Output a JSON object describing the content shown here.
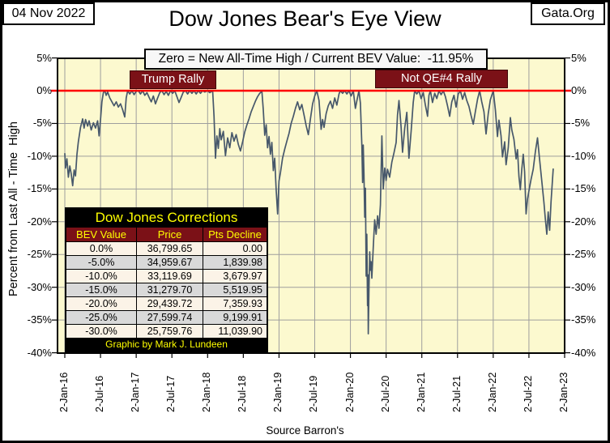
{
  "colors": {
    "plot_bg": "#FCF9CF",
    "series_line": "#47586B",
    "zero_line": "#FF0000",
    "maroon": "#7B1117",
    "yellow": "#FFFF00",
    "gridline": "#9E9E9E",
    "row_cream": "#FBF3E7",
    "row_gray": "#D9D9D9"
  },
  "header": {
    "date_box": "04 Nov 2022",
    "site_box": "Gata.Org",
    "title": "Dow Jones Bear's Eye View",
    "subtitle": "Zero = New All-Time High / Current BEV Value:  -11.95%"
  },
  "annotations": {
    "trump_rally": "Trump Rally",
    "not_qe4_rally": "Not QE#4 Rally"
  },
  "axes": {
    "y_title": "Percent from Last All - Time  High",
    "x_source": "Source Barron's",
    "y_tick_labels": [
      "5%",
      "0%",
      "-5%",
      "-10%",
      "-15%",
      "-20%",
      "-25%",
      "-30%",
      "-35%",
      "-40%"
    ],
    "x_tick_labels": [
      "2-Jan-16",
      "2-Jul-16",
      "2-Jan-17",
      "2-Jul-17",
      "2-Jan-18",
      "2-Jul-18",
      "2-Jan-19",
      "2-Jul-19",
      "2-Jan-20",
      "2-Jul-20",
      "2-Jan-21",
      "2-Jul-21",
      "2-Jan-22",
      "2-Jul-22",
      "2-Jan-23"
    ]
  },
  "corrections_table": {
    "title": "Dow Jones Corrections",
    "headers": [
      "BEV Value",
      "Price",
      "Pts Decline"
    ],
    "rows": [
      [
        "0.0%",
        "36,799.65",
        "0.00"
      ],
      [
        "-5.0%",
        "34,959.67",
        "1,839.98"
      ],
      [
        "-10.0%",
        "33,119.69",
        "3,679.97"
      ],
      [
        "-15.0%",
        "31,279.70",
        "5,519.95"
      ],
      [
        "-20.0%",
        "29,439.72",
        "7,359.93"
      ],
      [
        "-25.0%",
        "27,599.74",
        "9,199.91"
      ],
      [
        "-30.0%",
        "25,759.76",
        "11,039.90"
      ]
    ],
    "footer": "Graphic by Mark J. Lundeen"
  },
  "chart_data": {
    "type": "line",
    "title": "Dow Jones Bear's Eye View",
    "xlabel": "Source Barron's",
    "ylabel": "Percent from Last All - Time High",
    "xlim": [
      2016.0,
      2023.0
    ],
    "ylim": [
      -40,
      5
    ],
    "y_tick_values": [
      5,
      0,
      -5,
      -10,
      -15,
      -20,
      -25,
      -30,
      -35,
      -40
    ],
    "zero_line_value": 0,
    "grid": true,
    "current_bev_value": -11.95,
    "series": [
      {
        "name": "Dow Jones BEV (percent from last all-time high)",
        "points": [
          [
            2016.0,
            -9.6
          ],
          [
            2016.01,
            -11.8
          ],
          [
            2016.03,
            -10.4
          ],
          [
            2016.05,
            -13.2
          ],
          [
            2016.07,
            -11.5
          ],
          [
            2016.09,
            -12.7
          ],
          [
            2016.11,
            -14.5
          ],
          [
            2016.13,
            -12.1
          ],
          [
            2016.15,
            -13.0
          ],
          [
            2016.17,
            -9.7
          ],
          [
            2016.19,
            -7.8
          ],
          [
            2016.22,
            -5.6
          ],
          [
            2016.25,
            -4.3
          ],
          [
            2016.27,
            -5.7
          ],
          [
            2016.29,
            -4.4
          ],
          [
            2016.32,
            -5.4
          ],
          [
            2016.34,
            -4.6
          ],
          [
            2016.37,
            -6.0
          ],
          [
            2016.4,
            -4.9
          ],
          [
            2016.43,
            -5.7
          ],
          [
            2016.46,
            -4.6
          ],
          [
            2016.48,
            -6.9
          ],
          [
            2016.5,
            -4.4
          ],
          [
            2016.52,
            -1.7
          ],
          [
            2016.54,
            -0.3
          ],
          [
            2016.56,
            0
          ],
          [
            2016.58,
            -0.7
          ],
          [
            2016.6,
            -0.2
          ],
          [
            2016.63,
            -1.1
          ],
          [
            2016.66,
            -1.7
          ],
          [
            2016.69,
            -2.3
          ],
          [
            2016.72,
            -1.7
          ],
          [
            2016.75,
            -2.5
          ],
          [
            2016.78,
            -2.0
          ],
          [
            2016.81,
            -2.9
          ],
          [
            2016.84,
            -4.0
          ],
          [
            2016.86,
            -1.1
          ],
          [
            2016.88,
            0
          ],
          [
            2016.91,
            -0.5
          ],
          [
            2016.94,
            0
          ],
          [
            2016.97,
            -0.6
          ],
          [
            2017.0,
            -0.1
          ],
          [
            2017.03,
            0
          ],
          [
            2017.06,
            -0.5
          ],
          [
            2017.09,
            0
          ],
          [
            2017.12,
            -0.7
          ],
          [
            2017.15,
            -0.3
          ],
          [
            2017.18,
            -1.0
          ],
          [
            2017.21,
            -1.7
          ],
          [
            2017.24,
            -0.8
          ],
          [
            2017.27,
            -2.0
          ],
          [
            2017.3,
            -1.1
          ],
          [
            2017.33,
            -0.3
          ],
          [
            2017.36,
            0
          ],
          [
            2017.39,
            -0.6
          ],
          [
            2017.42,
            -0.1
          ],
          [
            2017.45,
            -0.7
          ],
          [
            2017.48,
            0
          ],
          [
            2017.51,
            -0.4
          ],
          [
            2017.54,
            0
          ],
          [
            2017.57,
            -0.9
          ],
          [
            2017.6,
            -1.8
          ],
          [
            2017.63,
            -1.0
          ],
          [
            2017.66,
            -0.2
          ],
          [
            2017.69,
            0
          ],
          [
            2017.72,
            -0.5
          ],
          [
            2017.75,
            0
          ],
          [
            2017.78,
            -0.4
          ],
          [
            2017.81,
            0
          ],
          [
            2017.84,
            -0.5
          ],
          [
            2017.87,
            0
          ],
          [
            2017.9,
            -0.4
          ],
          [
            2017.93,
            0
          ],
          [
            2017.96,
            -0.2
          ],
          [
            2018.0,
            0
          ],
          [
            2018.03,
            -0.3
          ],
          [
            2018.07,
            0
          ],
          [
            2018.09,
            -3.9
          ],
          [
            2018.11,
            -10.3
          ],
          [
            2018.13,
            -6.9
          ],
          [
            2018.15,
            -8.8
          ],
          [
            2018.17,
            -5.8
          ],
          [
            2018.19,
            -7.5
          ],
          [
            2018.22,
            -6.2
          ],
          [
            2018.25,
            -9.9
          ],
          [
            2018.28,
            -7.2
          ],
          [
            2018.31,
            -8.7
          ],
          [
            2018.34,
            -6.4
          ],
          [
            2018.37,
            -7.7
          ],
          [
            2018.4,
            -6.7
          ],
          [
            2018.43,
            -8.2
          ],
          [
            2018.46,
            -9.2
          ],
          [
            2018.49,
            -7.8
          ],
          [
            2018.52,
            -6.3
          ],
          [
            2018.55,
            -5.2
          ],
          [
            2018.58,
            -4.3
          ],
          [
            2018.61,
            -3.2
          ],
          [
            2018.64,
            -2.4
          ],
          [
            2018.67,
            -1.6
          ],
          [
            2018.7,
            -0.9
          ],
          [
            2018.73,
            -0.4
          ],
          [
            2018.76,
            -0.1
          ],
          [
            2018.78,
            -2.9
          ],
          [
            2018.8,
            -6.8
          ],
          [
            2018.82,
            -5.2
          ],
          [
            2018.84,
            -8.7
          ],
          [
            2018.86,
            -7.0
          ],
          [
            2018.88,
            -9.7
          ],
          [
            2018.9,
            -7.9
          ],
          [
            2018.92,
            -12.2
          ],
          [
            2018.94,
            -10.3
          ],
          [
            2018.96,
            -15.1
          ],
          [
            2018.98,
            -18.8
          ],
          [
            2019.0,
            -13.8
          ],
          [
            2019.02,
            -12.5
          ],
          [
            2019.05,
            -10.3
          ],
          [
            2019.08,
            -8.9
          ],
          [
            2019.11,
            -7.7
          ],
          [
            2019.14,
            -6.5
          ],
          [
            2019.17,
            -5.0
          ],
          [
            2019.2,
            -3.9
          ],
          [
            2019.23,
            -2.7
          ],
          [
            2019.26,
            -1.7
          ],
          [
            2019.29,
            -2.9
          ],
          [
            2019.32,
            -2.1
          ],
          [
            2019.35,
            -3.7
          ],
          [
            2019.38,
            -5.3
          ],
          [
            2019.41,
            -6.7
          ],
          [
            2019.44,
            -4.3
          ],
          [
            2019.47,
            -2.0
          ],
          [
            2019.5,
            -0.8
          ],
          [
            2019.53,
            0
          ],
          [
            2019.56,
            -1.5
          ],
          [
            2019.59,
            -5.9
          ],
          [
            2019.61,
            -4.4
          ],
          [
            2019.63,
            -5.6
          ],
          [
            2019.66,
            -3.5
          ],
          [
            2019.69,
            -2.3
          ],
          [
            2019.72,
            -1.6
          ],
          [
            2019.75,
            -2.7
          ],
          [
            2019.78,
            -1.1
          ],
          [
            2019.81,
            -2.2
          ],
          [
            2019.84,
            -0.5
          ],
          [
            2019.86,
            0
          ],
          [
            2019.89,
            -0.4
          ],
          [
            2019.92,
            0
          ],
          [
            2019.95,
            -0.5
          ],
          [
            2019.98,
            0
          ],
          [
            2020.01,
            -0.8
          ],
          [
            2020.04,
            0
          ],
          [
            2020.07,
            -2.7
          ],
          [
            2020.1,
            -1.0
          ],
          [
            2020.12,
            0
          ],
          [
            2020.14,
            -1.9
          ],
          [
            2020.16,
            -8.4
          ],
          [
            2020.17,
            -14.0
          ],
          [
            2020.18,
            -8.3
          ],
          [
            2020.19,
            -12.8
          ],
          [
            2020.2,
            -19.3
          ],
          [
            2020.21,
            -14.9
          ],
          [
            2020.22,
            -28.3
          ],
          [
            2020.23,
            -21.9
          ],
          [
            2020.24,
            -32.8
          ],
          [
            2020.245,
            -28.1
          ],
          [
            2020.25,
            -37.1
          ],
          [
            2020.26,
            -30.1
          ],
          [
            2020.27,
            -24.6
          ],
          [
            2020.28,
            -27.4
          ],
          [
            2020.29,
            -26.1
          ],
          [
            2020.3,
            -28.6
          ],
          [
            2020.32,
            -23.8
          ],
          [
            2020.34,
            -19.7
          ],
          [
            2020.36,
            -21.9
          ],
          [
            2020.38,
            -19.1
          ],
          [
            2020.4,
            -21.0
          ],
          [
            2020.42,
            -17.4
          ],
          [
            2020.44,
            -6.9
          ],
          [
            2020.46,
            -15.0
          ],
          [
            2020.48,
            -11.8
          ],
          [
            2020.5,
            -13.7
          ],
          [
            2020.52,
            -12.0
          ],
          [
            2020.55,
            -13.2
          ],
          [
            2020.58,
            -10.9
          ],
          [
            2020.61,
            -9.5
          ],
          [
            2020.64,
            -7.9
          ],
          [
            2020.66,
            -3.7
          ],
          [
            2020.68,
            -1.5
          ],
          [
            2020.71,
            -5.5
          ],
          [
            2020.73,
            -9.4
          ],
          [
            2020.76,
            -5.7
          ],
          [
            2020.79,
            -3.3
          ],
          [
            2020.82,
            -10.3
          ],
          [
            2020.85,
            -6.2
          ],
          [
            2020.88,
            -1.8
          ],
          [
            2020.9,
            0
          ],
          [
            2020.93,
            -0.5
          ],
          [
            2020.96,
            0
          ],
          [
            2020.99,
            -1.2
          ],
          [
            2021.02,
            -0.3
          ],
          [
            2021.05,
            -2.2
          ],
          [
            2021.08,
            -3.9
          ],
          [
            2021.1,
            -0.7
          ],
          [
            2021.12,
            0
          ],
          [
            2021.15,
            -1.8
          ],
          [
            2021.18,
            -0.4
          ],
          [
            2021.21,
            -1.2
          ],
          [
            2021.24,
            0
          ],
          [
            2021.27,
            -0.6
          ],
          [
            2021.3,
            0
          ],
          [
            2021.33,
            -0.9
          ],
          [
            2021.36,
            -2.3
          ],
          [
            2021.39,
            -3.9
          ],
          [
            2021.42,
            -1.7
          ],
          [
            2021.45,
            -0.7
          ],
          [
            2021.48,
            -2.5
          ],
          [
            2021.51,
            -0.5
          ],
          [
            2021.54,
            0
          ],
          [
            2021.57,
            -1.3
          ],
          [
            2021.6,
            -0.3
          ],
          [
            2021.63,
            -1.5
          ],
          [
            2021.66,
            -2.4
          ],
          [
            2021.69,
            -3.8
          ],
          [
            2021.72,
            -5.1
          ],
          [
            2021.75,
            -3.2
          ],
          [
            2021.78,
            -1.3
          ],
          [
            2021.81,
            0
          ],
          [
            2021.84,
            -1.7
          ],
          [
            2021.87,
            -3.2
          ],
          [
            2021.9,
            -6.6
          ],
          [
            2021.93,
            -3.5
          ],
          [
            2021.96,
            -1.4
          ],
          [
            2022.0,
            0
          ],
          [
            2022.03,
            -2.9
          ],
          [
            2022.06,
            -7.0
          ],
          [
            2022.08,
            -4.5
          ],
          [
            2022.11,
            -6.9
          ],
          [
            2022.13,
            -10.1
          ],
          [
            2022.16,
            -7.8
          ],
          [
            2022.18,
            -11.3
          ],
          [
            2022.21,
            -8.7
          ],
          [
            2022.24,
            -4.1
          ],
          [
            2022.26,
            -6.0
          ],
          [
            2022.29,
            -7.4
          ],
          [
            2022.32,
            -10.4
          ],
          [
            2022.34,
            -9.0
          ],
          [
            2022.36,
            -13.1
          ],
          [
            2022.38,
            -15.1
          ],
          [
            2022.4,
            -12.0
          ],
          [
            2022.42,
            -9.7
          ],
          [
            2022.44,
            -12.4
          ],
          [
            2022.46,
            -18.8
          ],
          [
            2022.48,
            -16.5
          ],
          [
            2022.5,
            -15.3
          ],
          [
            2022.53,
            -13.5
          ],
          [
            2022.56,
            -12.0
          ],
          [
            2022.59,
            -9.3
          ],
          [
            2022.62,
            -7.2
          ],
          [
            2022.65,
            -10.5
          ],
          [
            2022.68,
            -13.8
          ],
          [
            2022.71,
            -17.0
          ],
          [
            2022.73,
            -19.6
          ],
          [
            2022.75,
            -21.9
          ],
          [
            2022.77,
            -18.5
          ],
          [
            2022.79,
            -21.3
          ],
          [
            2022.81,
            -17.0
          ],
          [
            2022.83,
            -13.6
          ],
          [
            2022.84,
            -11.95
          ]
        ]
      }
    ]
  }
}
